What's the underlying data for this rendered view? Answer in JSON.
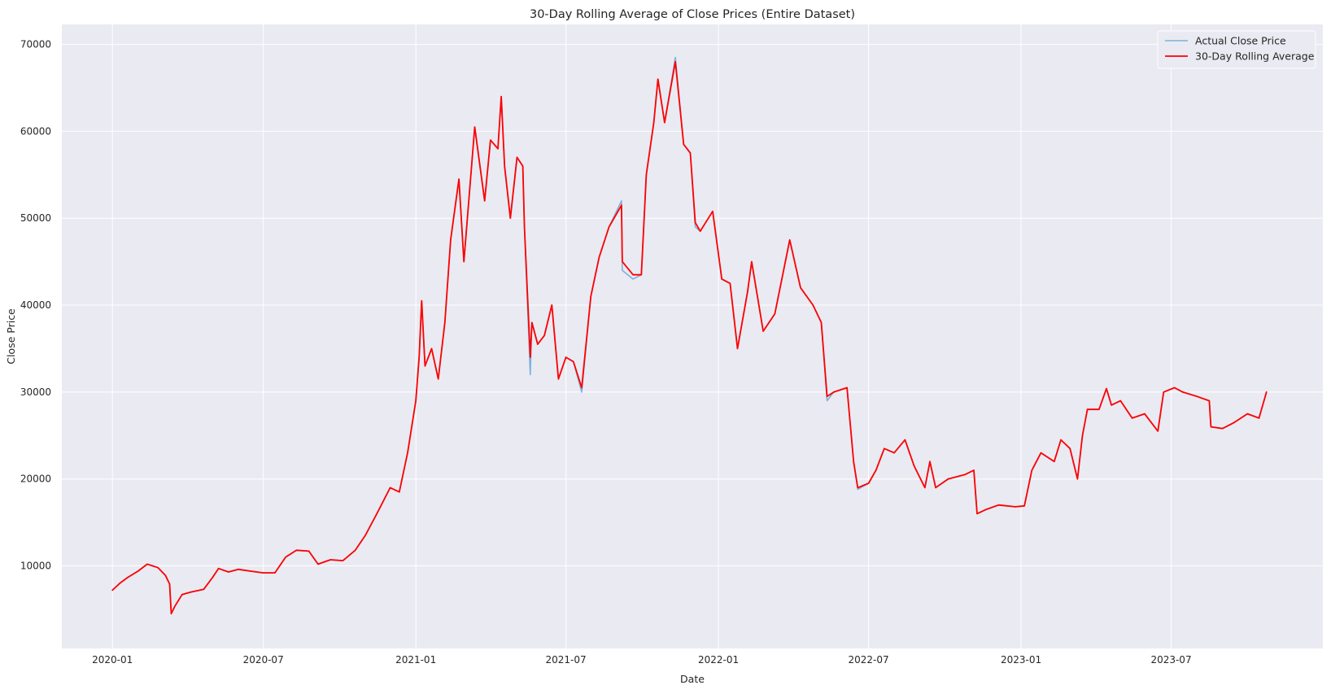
{
  "chart_data": {
    "type": "line",
    "title": "30-Day Rolling Average of Close Prices (Entire Dataset)",
    "xlabel": "Date",
    "ylabel": "Close Price",
    "x_ticks": [
      "2020-01",
      "2020-07",
      "2021-01",
      "2021-07",
      "2022-01",
      "2022-07",
      "2023-01",
      "2023-07"
    ],
    "y_ticks": [
      10000,
      20000,
      30000,
      40000,
      50000,
      60000,
      70000
    ],
    "y_tick_labels": [
      "10000",
      "20000",
      "30000",
      "40000",
      "50000",
      "60000",
      "70000"
    ],
    "xlim": [
      "2019-11-01",
      "2023-12-31"
    ],
    "ylim": [
      500,
      72300
    ],
    "grid": true,
    "legend_position": "top-right",
    "background_color": "#EAEAF2",
    "grid_color": "#FFFFFF",
    "series": [
      {
        "name": "Actual Close Price",
        "color": "#7FB0D8",
        "points": [
          [
            "2020-01-01",
            7200
          ],
          [
            "2020-01-10",
            8000
          ],
          [
            "2020-01-20",
            8700
          ],
          [
            "2020-02-01",
            9400
          ],
          [
            "2020-02-12",
            10200
          ],
          [
            "2020-02-25",
            9800
          ],
          [
            "2020-03-05",
            8900
          ],
          [
            "2020-03-10",
            7900
          ],
          [
            "2020-03-12",
            4500
          ],
          [
            "2020-03-16",
            5300
          ],
          [
            "2020-03-25",
            6700
          ],
          [
            "2020-04-05",
            7000
          ],
          [
            "2020-04-20",
            7300
          ],
          [
            "2020-05-01",
            8700
          ],
          [
            "2020-05-08",
            9700
          ],
          [
            "2020-05-20",
            9300
          ],
          [
            "2020-06-01",
            9600
          ],
          [
            "2020-06-15",
            9400
          ],
          [
            "2020-07-01",
            9200
          ],
          [
            "2020-07-15",
            9200
          ],
          [
            "2020-07-28",
            11000
          ],
          [
            "2020-08-10",
            11800
          ],
          [
            "2020-08-25",
            11700
          ],
          [
            "2020-09-05",
            10200
          ],
          [
            "2020-09-20",
            10700
          ],
          [
            "2020-10-05",
            10600
          ],
          [
            "2020-10-20",
            11800
          ],
          [
            "2020-11-01",
            13500
          ],
          [
            "2020-11-15",
            16000
          ],
          [
            "2020-12-01",
            19000
          ],
          [
            "2020-12-12",
            18500
          ],
          [
            "2020-12-22",
            23000
          ],
          [
            "2021-01-01",
            29000
          ],
          [
            "2021-01-05",
            34000
          ],
          [
            "2021-01-08",
            40500
          ],
          [
            "2021-01-12",
            33000
          ],
          [
            "2021-01-20",
            35000
          ],
          [
            "2021-01-28",
            31500
          ],
          [
            "2021-02-05",
            38000
          ],
          [
            "2021-02-12",
            47500
          ],
          [
            "2021-02-22",
            54500
          ],
          [
            "2021-02-28",
            45000
          ],
          [
            "2021-03-13",
            60500
          ],
          [
            "2021-03-25",
            52000
          ],
          [
            "2021-04-01",
            59000
          ],
          [
            "2021-04-10",
            58000
          ],
          [
            "2021-04-14",
            64000
          ],
          [
            "2021-04-18",
            56000
          ],
          [
            "2021-04-25",
            50000
          ],
          [
            "2021-05-03",
            57000
          ],
          [
            "2021-05-10",
            56000
          ],
          [
            "2021-05-12",
            49000
          ],
          [
            "2021-05-19",
            32000
          ],
          [
            "2021-05-21",
            38000
          ],
          [
            "2021-05-28",
            35500
          ],
          [
            "2021-06-05",
            36500
          ],
          [
            "2021-06-14",
            40000
          ],
          [
            "2021-06-22",
            31500
          ],
          [
            "2021-07-01",
            34000
          ],
          [
            "2021-07-10",
            33500
          ],
          [
            "2021-07-20",
            30000
          ],
          [
            "2021-07-31",
            41000
          ],
          [
            "2021-08-10",
            45500
          ],
          [
            "2021-08-22",
            49000
          ],
          [
            "2021-09-06",
            52000
          ],
          [
            "2021-09-07",
            44000
          ],
          [
            "2021-09-20",
            43000
          ],
          [
            "2021-09-30",
            43500
          ],
          [
            "2021-10-06",
            55000
          ],
          [
            "2021-10-15",
            61000
          ],
          [
            "2021-10-20",
            66000
          ],
          [
            "2021-10-28",
            61000
          ],
          [
            "2021-11-10",
            68500
          ],
          [
            "2021-11-20",
            58500
          ],
          [
            "2021-11-28",
            57500
          ],
          [
            "2021-12-04",
            49000
          ],
          [
            "2021-12-10",
            48500
          ],
          [
            "2021-12-25",
            50800
          ],
          [
            "2022-01-05",
            43000
          ],
          [
            "2022-01-15",
            42500
          ],
          [
            "2022-01-24",
            35000
          ],
          [
            "2022-02-05",
            41500
          ],
          [
            "2022-02-10",
            45000
          ],
          [
            "2022-02-24",
            37000
          ],
          [
            "2022-03-10",
            39000
          ],
          [
            "2022-03-28",
            47500
          ],
          [
            "2022-04-10",
            42000
          ],
          [
            "2022-04-25",
            40000
          ],
          [
            "2022-05-05",
            38000
          ],
          [
            "2022-05-12",
            29000
          ],
          [
            "2022-05-20",
            30000
          ],
          [
            "2022-06-05",
            30500
          ],
          [
            "2022-06-13",
            22000
          ],
          [
            "2022-06-18",
            18800
          ],
          [
            "2022-07-01",
            19500
          ],
          [
            "2022-07-10",
            21000
          ],
          [
            "2022-07-20",
            23500
          ],
          [
            "2022-08-01",
            23000
          ],
          [
            "2022-08-14",
            24500
          ],
          [
            "2022-08-25",
            21500
          ],
          [
            "2022-09-07",
            19000
          ],
          [
            "2022-09-13",
            22000
          ],
          [
            "2022-09-20",
            19000
          ],
          [
            "2022-10-05",
            20000
          ],
          [
            "2022-10-25",
            20500
          ],
          [
            "2022-11-05",
            21000
          ],
          [
            "2022-11-09",
            16000
          ],
          [
            "2022-11-20",
            16500
          ],
          [
            "2022-12-05",
            17000
          ],
          [
            "2022-12-25",
            16800
          ],
          [
            "2023-01-05",
            16900
          ],
          [
            "2023-01-14",
            21000
          ],
          [
            "2023-01-25",
            23000
          ],
          [
            "2023-02-10",
            22000
          ],
          [
            "2023-02-18",
            24500
          ],
          [
            "2023-03-01",
            23500
          ],
          [
            "2023-03-10",
            20000
          ],
          [
            "2023-03-16",
            25000
          ],
          [
            "2023-03-22",
            28000
          ],
          [
            "2023-04-05",
            28000
          ],
          [
            "2023-04-14",
            30400
          ],
          [
            "2023-04-20",
            28500
          ],
          [
            "2023-05-01",
            29000
          ],
          [
            "2023-05-15",
            27000
          ],
          [
            "2023-05-30",
            27500
          ],
          [
            "2023-06-15",
            25500
          ],
          [
            "2023-06-22",
            30000
          ],
          [
            "2023-07-05",
            30500
          ],
          [
            "2023-07-15",
            30000
          ],
          [
            "2023-08-01",
            29500
          ],
          [
            "2023-08-16",
            29000
          ],
          [
            "2023-08-18",
            26000
          ],
          [
            "2023-09-01",
            25800
          ],
          [
            "2023-09-15",
            26500
          ],
          [
            "2023-10-01",
            27500
          ],
          [
            "2023-10-15",
            27000
          ],
          [
            "2023-10-24",
            30000
          ]
        ]
      },
      {
        "name": "30-Day Rolling Average",
        "color": "#FF0000",
        "points": [
          [
            "2020-01-01",
            7200
          ],
          [
            "2020-01-10",
            8000
          ],
          [
            "2020-01-20",
            8700
          ],
          [
            "2020-02-01",
            9400
          ],
          [
            "2020-02-12",
            10200
          ],
          [
            "2020-02-25",
            9800
          ],
          [
            "2020-03-05",
            8900
          ],
          [
            "2020-03-10",
            7900
          ],
          [
            "2020-03-12",
            4500
          ],
          [
            "2020-03-16",
            5300
          ],
          [
            "2020-03-25",
            6700
          ],
          [
            "2020-04-05",
            7000
          ],
          [
            "2020-04-20",
            7300
          ],
          [
            "2020-05-01",
            8700
          ],
          [
            "2020-05-08",
            9700
          ],
          [
            "2020-05-20",
            9300
          ],
          [
            "2020-06-01",
            9600
          ],
          [
            "2020-06-15",
            9400
          ],
          [
            "2020-07-01",
            9200
          ],
          [
            "2020-07-15",
            9200
          ],
          [
            "2020-07-28",
            11000
          ],
          [
            "2020-08-10",
            11800
          ],
          [
            "2020-08-25",
            11700
          ],
          [
            "2020-09-05",
            10200
          ],
          [
            "2020-09-20",
            10700
          ],
          [
            "2020-10-05",
            10600
          ],
          [
            "2020-10-20",
            11800
          ],
          [
            "2020-11-01",
            13500
          ],
          [
            "2020-11-15",
            16000
          ],
          [
            "2020-12-01",
            19000
          ],
          [
            "2020-12-12",
            18500
          ],
          [
            "2020-12-22",
            23000
          ],
          [
            "2021-01-01",
            29000
          ],
          [
            "2021-01-05",
            34000
          ],
          [
            "2021-01-08",
            40500
          ],
          [
            "2021-01-12",
            33000
          ],
          [
            "2021-01-20",
            35000
          ],
          [
            "2021-01-28",
            31500
          ],
          [
            "2021-02-05",
            38000
          ],
          [
            "2021-02-12",
            47500
          ],
          [
            "2021-02-22",
            54500
          ],
          [
            "2021-02-28",
            45000
          ],
          [
            "2021-03-13",
            60500
          ],
          [
            "2021-03-25",
            52000
          ],
          [
            "2021-04-01",
            59000
          ],
          [
            "2021-04-10",
            58000
          ],
          [
            "2021-04-14",
            64000
          ],
          [
            "2021-04-18",
            56000
          ],
          [
            "2021-04-25",
            50000
          ],
          [
            "2021-05-03",
            57000
          ],
          [
            "2021-05-10",
            56000
          ],
          [
            "2021-05-12",
            49000
          ],
          [
            "2021-05-19",
            34000
          ],
          [
            "2021-05-21",
            38000
          ],
          [
            "2021-05-28",
            35500
          ],
          [
            "2021-06-05",
            36500
          ],
          [
            "2021-06-14",
            40000
          ],
          [
            "2021-06-22",
            31500
          ],
          [
            "2021-07-01",
            34000
          ],
          [
            "2021-07-10",
            33500
          ],
          [
            "2021-07-20",
            30500
          ],
          [
            "2021-07-31",
            41000
          ],
          [
            "2021-08-10",
            45500
          ],
          [
            "2021-08-22",
            49000
          ],
          [
            "2021-09-06",
            51500
          ],
          [
            "2021-09-07",
            45000
          ],
          [
            "2021-09-20",
            43500
          ],
          [
            "2021-09-30",
            43500
          ],
          [
            "2021-10-06",
            55000
          ],
          [
            "2021-10-15",
            61000
          ],
          [
            "2021-10-20",
            66000
          ],
          [
            "2021-10-28",
            61000
          ],
          [
            "2021-11-10",
            68000
          ],
          [
            "2021-11-20",
            58500
          ],
          [
            "2021-11-28",
            57500
          ],
          [
            "2021-12-04",
            49500
          ],
          [
            "2021-12-10",
            48500
          ],
          [
            "2021-12-25",
            50800
          ],
          [
            "2022-01-05",
            43000
          ],
          [
            "2022-01-15",
            42500
          ],
          [
            "2022-01-24",
            35000
          ],
          [
            "2022-02-05",
            41500
          ],
          [
            "2022-02-10",
            45000
          ],
          [
            "2022-02-24",
            37000
          ],
          [
            "2022-03-10",
            39000
          ],
          [
            "2022-03-28",
            47500
          ],
          [
            "2022-04-10",
            42000
          ],
          [
            "2022-04-25",
            40000
          ],
          [
            "2022-05-05",
            38000
          ],
          [
            "2022-05-12",
            29500
          ],
          [
            "2022-05-20",
            30000
          ],
          [
            "2022-06-05",
            30500
          ],
          [
            "2022-06-13",
            22000
          ],
          [
            "2022-06-18",
            19000
          ],
          [
            "2022-07-01",
            19500
          ],
          [
            "2022-07-10",
            21000
          ],
          [
            "2022-07-20",
            23500
          ],
          [
            "2022-08-01",
            23000
          ],
          [
            "2022-08-14",
            24500
          ],
          [
            "2022-08-25",
            21500
          ],
          [
            "2022-09-07",
            19000
          ],
          [
            "2022-09-13",
            22000
          ],
          [
            "2022-09-20",
            19000
          ],
          [
            "2022-10-05",
            20000
          ],
          [
            "2022-10-25",
            20500
          ],
          [
            "2022-11-05",
            21000
          ],
          [
            "2022-11-09",
            16000
          ],
          [
            "2022-11-20",
            16500
          ],
          [
            "2022-12-05",
            17000
          ],
          [
            "2022-12-25",
            16800
          ],
          [
            "2023-01-05",
            16900
          ],
          [
            "2023-01-14",
            21000
          ],
          [
            "2023-01-25",
            23000
          ],
          [
            "2023-02-10",
            22000
          ],
          [
            "2023-02-18",
            24500
          ],
          [
            "2023-03-01",
            23500
          ],
          [
            "2023-03-10",
            20000
          ],
          [
            "2023-03-16",
            25000
          ],
          [
            "2023-03-22",
            28000
          ],
          [
            "2023-04-05",
            28000
          ],
          [
            "2023-04-14",
            30400
          ],
          [
            "2023-04-20",
            28500
          ],
          [
            "2023-05-01",
            29000
          ],
          [
            "2023-05-15",
            27000
          ],
          [
            "2023-05-30",
            27500
          ],
          [
            "2023-06-15",
            25500
          ],
          [
            "2023-06-22",
            30000
          ],
          [
            "2023-07-05",
            30500
          ],
          [
            "2023-07-15",
            30000
          ],
          [
            "2023-08-01",
            29500
          ],
          [
            "2023-08-16",
            29000
          ],
          [
            "2023-08-18",
            26000
          ],
          [
            "2023-09-01",
            25800
          ],
          [
            "2023-09-15",
            26500
          ],
          [
            "2023-10-01",
            27500
          ],
          [
            "2023-10-15",
            27000
          ],
          [
            "2023-10-24",
            30000
          ]
        ]
      }
    ]
  }
}
